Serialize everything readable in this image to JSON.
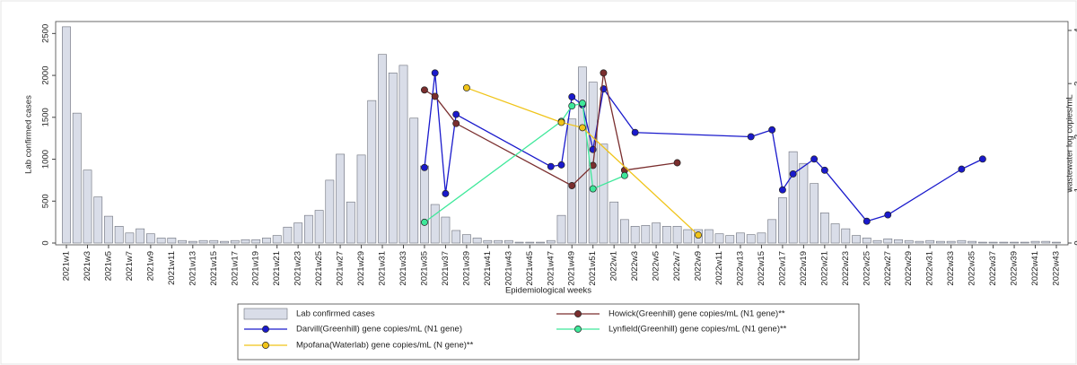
{
  "chart_data": {
    "type": "bar-line",
    "x_label": "Epidemiological weeks",
    "y_label": "Lab confirmed cases",
    "y2_label": "wastewater log copies/mL",
    "categories": [
      "2021w1",
      null,
      "2021w3",
      null,
      "2021w5",
      null,
      "2021w7",
      null,
      "2021w9",
      null,
      "2021w11",
      null,
      "2021w13",
      null,
      "2021w15",
      null,
      "2021w17",
      null,
      "2021w19",
      null,
      "2021w21",
      null,
      "2021w23",
      null,
      "2021w25",
      null,
      "2021w27",
      null,
      "2021w29",
      null,
      "2021w31",
      null,
      "2021w33",
      null,
      "2021w35",
      null,
      "2021w37",
      null,
      "2021w39",
      null,
      "2021w41",
      null,
      "2021w43",
      null,
      "2021w45",
      null,
      "2021w47",
      null,
      "2021w49",
      null,
      "2021w51",
      null,
      "2022w1",
      null,
      "2022w3",
      null,
      "2022w5",
      null,
      "2022w7",
      null,
      "2022w9",
      null,
      "2022w11",
      null,
      "2022w13",
      null,
      "2022w15",
      null,
      "2022w17",
      null,
      "2022w19",
      null,
      "2022w21",
      null,
      "2022w23",
      null,
      "2022w25",
      null,
      "2022w27",
      null,
      "2022w29",
      null,
      "2022w31",
      null,
      "2022w33",
      null,
      "2022w35",
      null,
      "2022w37",
      null,
      "2022w39",
      null,
      "2022w41",
      null,
      "2022w43"
    ],
    "ylim": [
      0,
      2600
    ],
    "yticks": [
      0,
      500,
      1000,
      1500,
      2000,
      2500
    ],
    "y2lim": [
      0,
      4.1
    ],
    "y2ticks": [
      0,
      1,
      2,
      3,
      4
    ],
    "series": [
      {
        "name": "Lab confirmed cases",
        "type": "bar",
        "color": "#d9dde8",
        "values": [
          2580,
          1550,
          870,
          550,
          320,
          200,
          120,
          170,
          110,
          60,
          60,
          30,
          20,
          30,
          30,
          20,
          30,
          40,
          40,
          60,
          90,
          190,
          240,
          330,
          390,
          750,
          1060,
          490,
          1050,
          1700,
          2250,
          2030,
          2120,
          1490,
          920,
          460,
          310,
          150,
          100,
          60,
          30,
          30,
          30,
          10,
          10,
          10,
          30,
          330,
          1480,
          2100,
          1920,
          1180,
          490,
          280,
          200,
          210,
          240,
          200,
          200,
          160,
          160,
          160,
          110,
          90,
          120,
          100,
          120,
          280,
          540,
          1090,
          950,
          710,
          360,
          230,
          170,
          90,
          60,
          30,
          50,
          40,
          30,
          20,
          30,
          20,
          20,
          30,
          20,
          10,
          10,
          10,
          10,
          10,
          20,
          20,
          10
        ]
      },
      {
        "name": "Darvill(Greenhill) gene copies/mL (N1 gene)",
        "type": "line",
        "axis": "y2",
        "color": "#1a1acc",
        "values": [
          null,
          null,
          null,
          null,
          null,
          null,
          null,
          null,
          null,
          null,
          null,
          null,
          null,
          null,
          null,
          null,
          null,
          null,
          null,
          null,
          null,
          null,
          null,
          null,
          null,
          null,
          null,
          null,
          null,
          null,
          null,
          null,
          null,
          null,
          1.42,
          3.2,
          0.93,
          2.42,
          null,
          null,
          null,
          null,
          null,
          null,
          null,
          null,
          1.44,
          1.47,
          2.75,
          2.6,
          1.76,
          2.9,
          null,
          null,
          2.08,
          null,
          null,
          null,
          null,
          null,
          null,
          null,
          null,
          null,
          null,
          2.0,
          null,
          2.13,
          1.0,
          1.3,
          null,
          1.58,
          1.37,
          null,
          null,
          null,
          0.41,
          null,
          0.53,
          null,
          null,
          null,
          null,
          null,
          null,
          1.39,
          null,
          1.58,
          null,
          null,
          null,
          null,
          null,
          null,
          null
        ]
      },
      {
        "name": "Howick(Greenhill) gene copies/mL (N1 gene)**",
        "type": "line",
        "axis": "y2",
        "color": "#7a2e2e",
        "values": [
          null,
          null,
          null,
          null,
          null,
          null,
          null,
          null,
          null,
          null,
          null,
          null,
          null,
          null,
          null,
          null,
          null,
          null,
          null,
          null,
          null,
          null,
          null,
          null,
          null,
          null,
          null,
          null,
          null,
          null,
          null,
          null,
          null,
          null,
          2.88,
          2.76,
          null,
          2.25,
          null,
          null,
          null,
          null,
          null,
          null,
          null,
          null,
          null,
          null,
          1.08,
          null,
          1.46,
          3.2,
          null,
          1.37,
          null,
          null,
          null,
          null,
          1.51,
          null,
          null,
          null,
          null,
          null,
          null,
          null,
          null,
          null,
          null,
          null,
          null,
          null,
          null,
          null,
          null,
          null,
          null,
          null,
          null,
          null,
          null,
          null,
          null,
          null,
          null,
          null,
          null,
          null,
          null,
          null,
          null,
          null,
          null,
          null,
          null
        ]
      },
      {
        "name": "Lynfield(Greenhill) gene copies/mL (N1 gene)**",
        "type": "line",
        "axis": "y2",
        "color": "#3ee89a",
        "values": [
          null,
          null,
          null,
          null,
          null,
          null,
          null,
          null,
          null,
          null,
          null,
          null,
          null,
          null,
          null,
          null,
          null,
          null,
          null,
          null,
          null,
          null,
          null,
          null,
          null,
          null,
          null,
          null,
          null,
          null,
          null,
          null,
          null,
          null,
          0.39,
          null,
          null,
          null,
          null,
          null,
          null,
          null,
          null,
          null,
          null,
          null,
          null,
          2.29,
          2.58,
          2.63,
          1.02,
          null,
          null,
          1.27,
          null,
          null,
          null,
          null,
          null,
          null,
          null,
          null,
          null,
          null,
          null,
          null,
          null,
          null,
          null,
          null,
          null,
          null,
          null,
          null,
          null,
          null,
          null,
          null,
          null,
          null,
          null,
          null,
          null,
          null,
          null,
          null,
          null,
          null,
          null,
          null,
          null,
          null,
          null,
          null,
          null
        ]
      },
      {
        "name": "Mpofana(Waterlab) gene copies/mL (N gene)**",
        "type": "line",
        "axis": "y2",
        "color": "#f0c419",
        "values": [
          null,
          null,
          null,
          null,
          null,
          null,
          null,
          null,
          null,
          null,
          null,
          null,
          null,
          null,
          null,
          null,
          null,
          null,
          null,
          null,
          null,
          null,
          null,
          null,
          null,
          null,
          null,
          null,
          null,
          null,
          null,
          null,
          null,
          null,
          null,
          null,
          null,
          null,
          2.92,
          null,
          null,
          null,
          null,
          null,
          null,
          null,
          null,
          2.27,
          null,
          2.17,
          null,
          null,
          null,
          null,
          null,
          null,
          null,
          null,
          null,
          null,
          0.15,
          null,
          null,
          null,
          null,
          null,
          null,
          null,
          null,
          null,
          null,
          null,
          null,
          null,
          null,
          null,
          null,
          null,
          null,
          null,
          null,
          null,
          null,
          null,
          null,
          null,
          null,
          null,
          null,
          null,
          null,
          null,
          null,
          null,
          null
        ]
      }
    ]
  }
}
